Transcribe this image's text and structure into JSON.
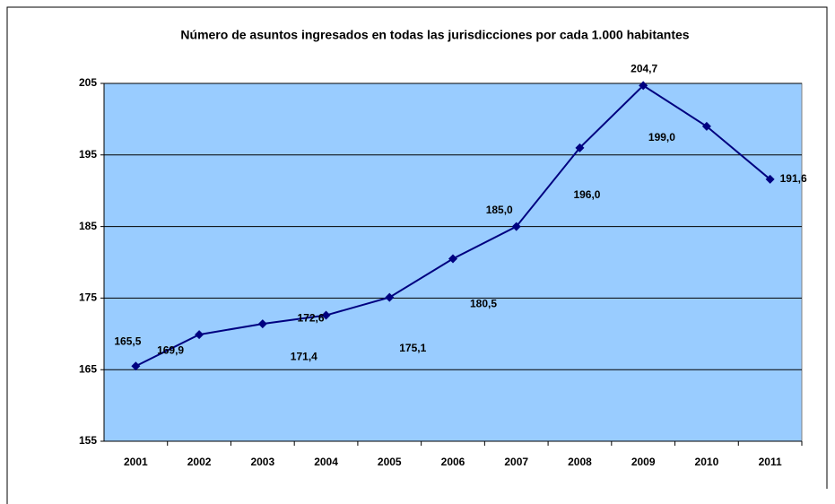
{
  "chart_data": {
    "type": "line",
    "title": "Número de asuntos  ingresados en todas las jurisdicciones por cada 1.000 habitantes",
    "categories": [
      "2001",
      "2002",
      "2003",
      "2004",
      "2005",
      "2006",
      "2007",
      "2008",
      "2009",
      "2010",
      "2011"
    ],
    "series": [
      {
        "name": "Asuntos ingresados",
        "color": "#000080",
        "values": [
          165.5,
          169.9,
          171.4,
          172.6,
          175.1,
          180.5,
          185.0,
          196.0,
          204.7,
          199.0,
          191.6
        ],
        "value_labels": [
          "165,5",
          "169,9",
          "171,4",
          "172,6",
          "175,1",
          "180,5",
          "185,0",
          "196,0",
          "204,7",
          "199,0",
          "191,6"
        ]
      }
    ],
    "ylim": [
      155,
      205
    ],
    "yticks": [
      155,
      165,
      175,
      185,
      195,
      205
    ],
    "grid": true,
    "plot_background": "#99ccff"
  }
}
